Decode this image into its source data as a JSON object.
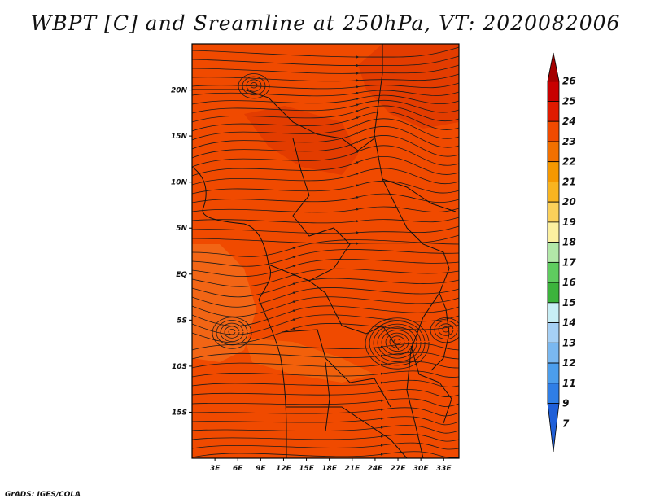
{
  "title": "WBPT [C] and Sreamline at 250hPa, VT: 2020082006",
  "credit": "GrADS: IGES/COLA",
  "map": {
    "lat_labels": [
      "20N",
      "15N",
      "10N",
      "5N",
      "EQ",
      "5S",
      "10S",
      "15S"
    ],
    "lat_values": [
      20,
      15,
      10,
      5,
      0,
      -5,
      -10,
      -15
    ],
    "lon_labels": [
      "3E",
      "6E",
      "9E",
      "12E",
      "15E",
      "18E",
      "21E",
      "24E",
      "27E",
      "30E",
      "33E"
    ],
    "lon_values": [
      3,
      6,
      9,
      12,
      15,
      18,
      21,
      24,
      27,
      30,
      33
    ],
    "lon_range": [
      0,
      35
    ],
    "lat_range": [
      -20,
      25
    ],
    "fill_color": "#f04a00",
    "streamline_color": "#1a1a1a",
    "coastline_color": "#111111"
  },
  "colorbar": {
    "levels": [
      "26",
      "25",
      "24",
      "23",
      "22",
      "21",
      "20",
      "19",
      "18",
      "17",
      "16",
      "15",
      "14",
      "13",
      "12",
      "11",
      "9",
      "7"
    ],
    "colors": [
      "#a50000",
      "#c80000",
      "#e01a00",
      "#f04a00",
      "#f27000",
      "#f59800",
      "#f8b420",
      "#fbd05a",
      "#fcf0a0",
      "#b2e8a8",
      "#5fcc5f",
      "#3cb33c",
      "#c8eef5",
      "#a6d0f5",
      "#7ab8f0",
      "#4c9eec",
      "#2f7ee6",
      "#1f5fd8"
    ]
  }
}
